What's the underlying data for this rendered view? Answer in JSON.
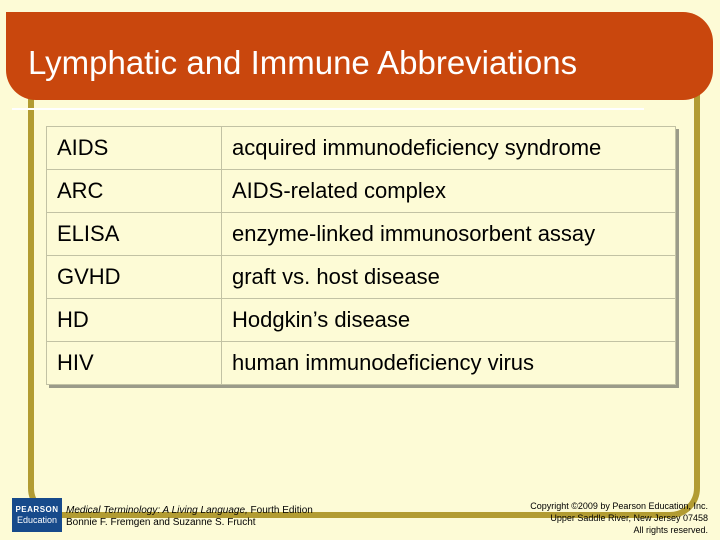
{
  "slide": {
    "title": "Lymphatic and Immune Abbreviations"
  },
  "table": {
    "rows": [
      {
        "code": "AIDS",
        "meaning": "acquired immunodeficiency syndrome"
      },
      {
        "code": "ARC",
        "meaning": "AIDS-related complex"
      },
      {
        "code": "ELISA",
        "meaning": "enzyme-linked immunosorbent assay"
      },
      {
        "code": "GVHD",
        "meaning": "graft vs. host disease"
      },
      {
        "code": "HD",
        "meaning": "Hodgkin’s disease"
      },
      {
        "code": "HIV",
        "meaning": "human immunodeficiency virus"
      }
    ]
  },
  "footer": {
    "logo_line1": "PEARSON",
    "logo_line2": "Education",
    "book_title": "Medical Terminology: A Living Language,",
    "book_edition": " Fourth Edition",
    "authors": "Bonnie F. Fremgen and Suzanne S. Frucht",
    "copyright_line1": "Copyright ©2009 by Pearson Education, Inc.",
    "copyright_line2": "Upper Saddle River, New Jersey 07458",
    "copyright_line3": "All rights reserved."
  }
}
